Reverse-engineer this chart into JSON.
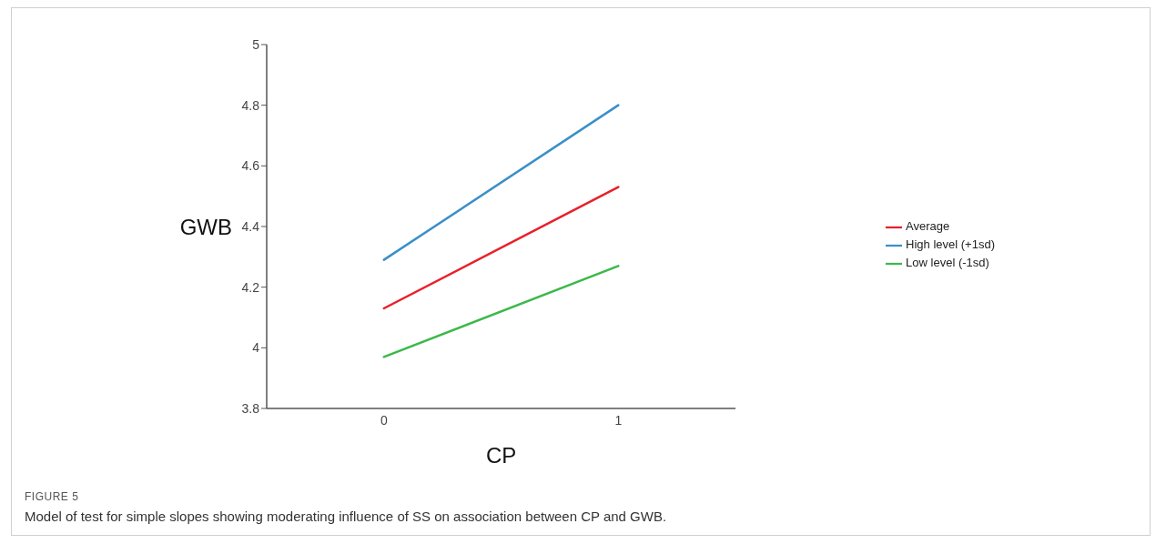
{
  "chart_data": {
    "type": "line",
    "xlabel": "CP",
    "ylabel": "GWB",
    "x": [
      0,
      1
    ],
    "xlim": [
      -0.5,
      1.5
    ],
    "xticks": [
      0,
      1
    ],
    "ylim": [
      3.8,
      5
    ],
    "yticks": [
      3.8,
      4,
      4.2,
      4.4,
      4.6,
      4.8,
      5
    ],
    "grid": false,
    "legend": "right",
    "marker": "none",
    "line_style": "solid",
    "series": [
      {
        "name": "Average",
        "color": "#e8202a",
        "values": [
          4.13,
          4.53
        ]
      },
      {
        "name": "High level (+1sd)",
        "color": "#3a8fc8",
        "values": [
          4.29,
          4.8
        ]
      },
      {
        "name": "Low level (-1sd)",
        "color": "#3cb84a",
        "values": [
          3.97,
          4.27
        ]
      }
    ],
    "annotations": [
      "FIGURE 5",
      "Model of test for simple slopes showing moderating influence of SS on association between CP and GWB."
    ]
  }
}
